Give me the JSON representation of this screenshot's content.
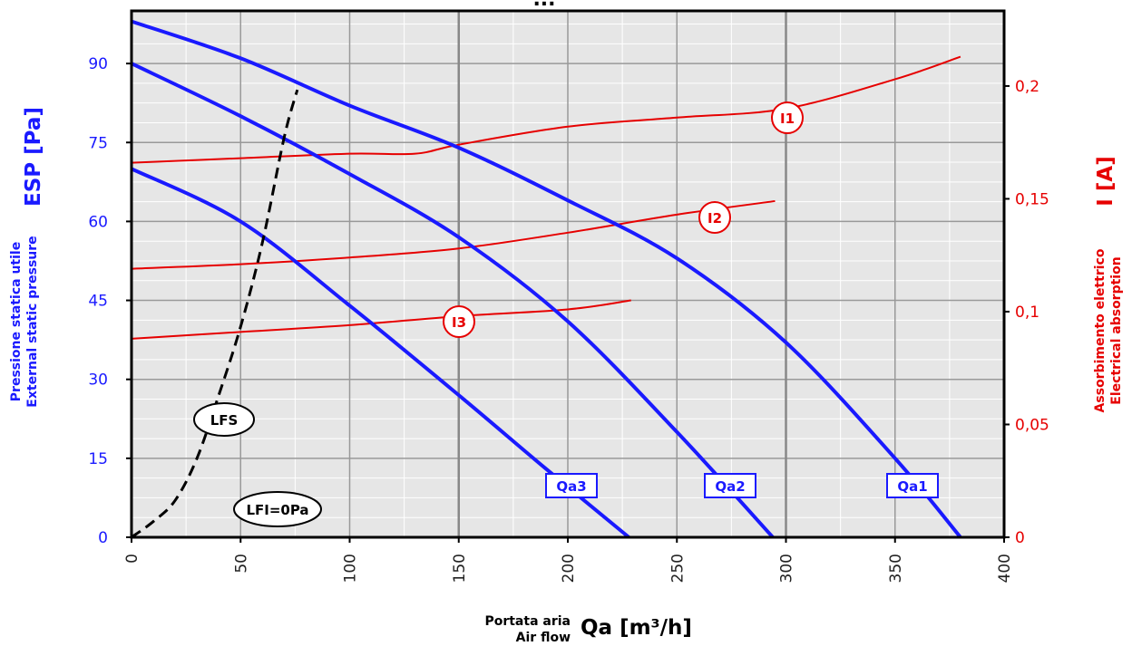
{
  "chart_data": {
    "type": "line",
    "title_fragment": "...",
    "x_axis": {
      "label_it": "Portata aria",
      "label_en": "Air flow",
      "title": "Qa  [m³/h]",
      "range": [
        0,
        400
      ],
      "ticks": [
        "0",
        "50",
        "100",
        "150",
        "200",
        "250",
        "300",
        "350",
        "400"
      ]
    },
    "y_axis_left": {
      "label_main": "ESP  [Pa]",
      "label_it": "Pressione statica utile",
      "label_en": "External static pressure",
      "range": [
        0,
        100
      ],
      "ticks": [
        "0",
        "15",
        "30",
        "45",
        "60",
        "75",
        "90"
      ],
      "color": "#1a1aff"
    },
    "y_axis_right": {
      "label_main": "I  [A]",
      "label_it": "Assorbimento elettrico",
      "label_en": "Electrical absorption",
      "range": [
        0,
        0.2333
      ],
      "ticks": [
        "0",
        "0,05",
        "0,1",
        "0,15",
        "0,2"
      ],
      "color": "#e60000"
    },
    "grid": true,
    "pressure_series": [
      {
        "name": "Qa1",
        "color": "#1a1aff",
        "x": [
          0,
          50,
          100,
          150,
          200,
          250,
          300,
          350,
          380
        ],
        "y": [
          98,
          91,
          82,
          74,
          64,
          53,
          37,
          15,
          0
        ]
      },
      {
        "name": "Qa2",
        "color": "#1a1aff",
        "x": [
          0,
          50,
          100,
          150,
          200,
          250,
          294
        ],
        "y": [
          90,
          80,
          69,
          57,
          41,
          20,
          0
        ]
      },
      {
        "name": "Qa3",
        "color": "#1a1aff",
        "x": [
          0,
          50,
          100,
          150,
          190,
          228
        ],
        "y": [
          70,
          60,
          44,
          27,
          13,
          0
        ]
      }
    ],
    "current_series": [
      {
        "name": "I1",
        "color": "#e60000",
        "x": [
          0,
          50,
          100,
          130,
          150,
          200,
          250,
          300,
          350,
          380
        ],
        "y": [
          0.166,
          0.168,
          0.17,
          0.17,
          0.174,
          0.182,
          0.186,
          0.19,
          0.203,
          0.213
        ]
      },
      {
        "name": "I2",
        "color": "#e60000",
        "x": [
          0,
          50,
          100,
          150,
          200,
          250,
          295
        ],
        "y": [
          0.119,
          0.121,
          0.124,
          0.128,
          0.135,
          0.143,
          0.149
        ]
      },
      {
        "name": "I3",
        "color": "#e60000",
        "x": [
          0,
          50,
          100,
          150,
          200,
          229
        ],
        "y": [
          0.088,
          0.091,
          0.094,
          0.098,
          0.101,
          0.105
        ]
      }
    ],
    "lfs_curve": {
      "name": "LFS",
      "color": "#000000",
      "style": "dashed",
      "x": [
        0,
        10,
        20,
        30,
        40,
        50,
        60,
        70,
        76
      ],
      "y": [
        0,
        3,
        7,
        15,
        27,
        40,
        56,
        76,
        85
      ]
    },
    "annotations": {
      "lfs_label": "LFS",
      "lfi_label": "LFI=0Pa"
    }
  }
}
